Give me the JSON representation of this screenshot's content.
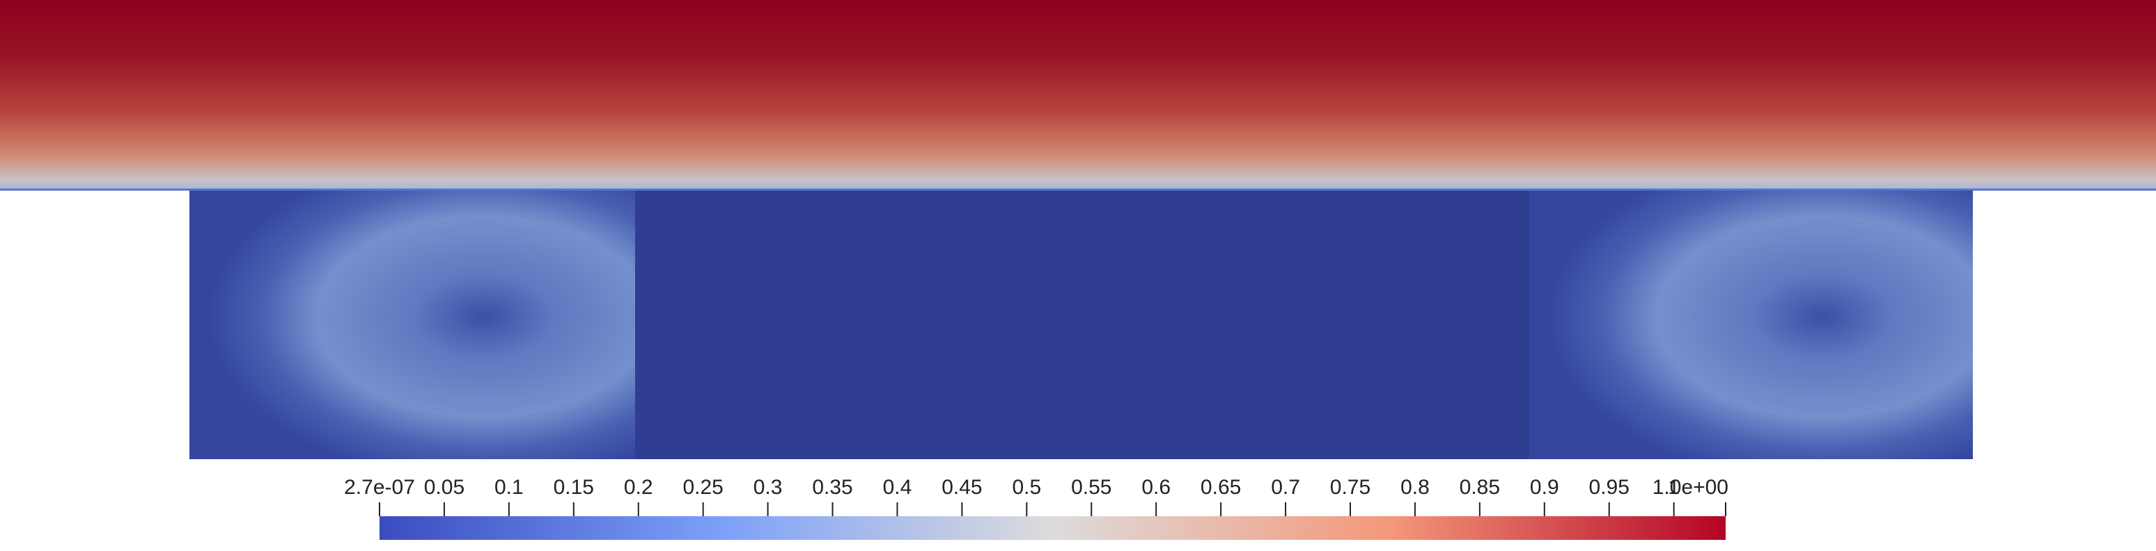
{
  "colorbar": {
    "range": [
      {
        "value": 2.7e-07,
        "label": "2.7e-07"
      },
      {
        "value": 1.04,
        "label": "1.0e+00"
      }
    ],
    "ticks": [
      0.05,
      0.1,
      0.15,
      0.2,
      0.25,
      0.3,
      0.35,
      0.4,
      0.45,
      0.5,
      0.55,
      0.6,
      0.65,
      0.7,
      0.75,
      0.8,
      0.85,
      0.9,
      0.95,
      1
    ]
  }
}
